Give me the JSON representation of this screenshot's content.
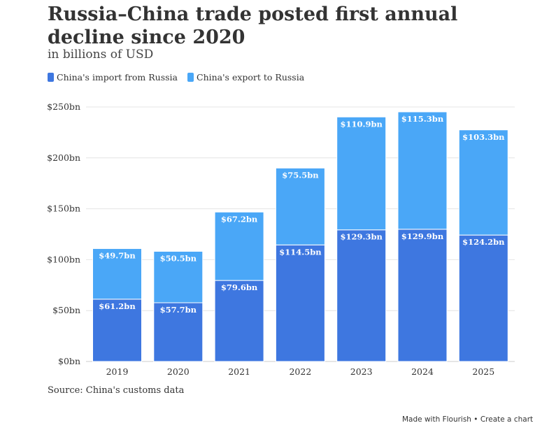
{
  "title": "Russia–China trade posted first annual decline since 2020",
  "subtitle": "in billions of USD",
  "source": "Source: China's customs data",
  "footer": "Made with Flourish • Create a chart",
  "colors": {
    "import": "#3e77e0",
    "export": "#4aa7f7",
    "grid": "#e4e4e4",
    "axis_text": "#333333"
  },
  "chart_data": {
    "type": "bar",
    "stacked": true,
    "categories": [
      "2019",
      "2020",
      "2021",
      "2022",
      "2023",
      "2024",
      "2025"
    ],
    "series": [
      {
        "name": "China's import from Russia",
        "values": [
          61.2,
          57.7,
          79.6,
          114.5,
          129.3,
          129.9,
          124.2
        ],
        "labels": [
          "$61.2bn",
          "$57.7bn",
          "$79.6bn",
          "$114.5bn",
          "$129.3bn",
          "$129.9bn",
          "$124.2bn"
        ]
      },
      {
        "name": "China's export to Russia",
        "values": [
          49.7,
          50.5,
          67.2,
          75.5,
          110.9,
          115.3,
          103.3
        ],
        "labels": [
          "$49.7bn",
          "$50.5bn",
          "$67.2bn",
          "$75.5bn",
          "$110.9bn",
          "$115.3bn",
          "$103.3bn"
        ]
      }
    ],
    "ylim": [
      0,
      250
    ],
    "yticks": [
      0,
      50,
      100,
      150,
      200,
      250
    ],
    "ytick_labels": [
      "$0bn",
      "$50bn",
      "$100bn",
      "$150bn",
      "$200bn",
      "$250bn"
    ],
    "grid": true,
    "legend_position": "top-left"
  }
}
